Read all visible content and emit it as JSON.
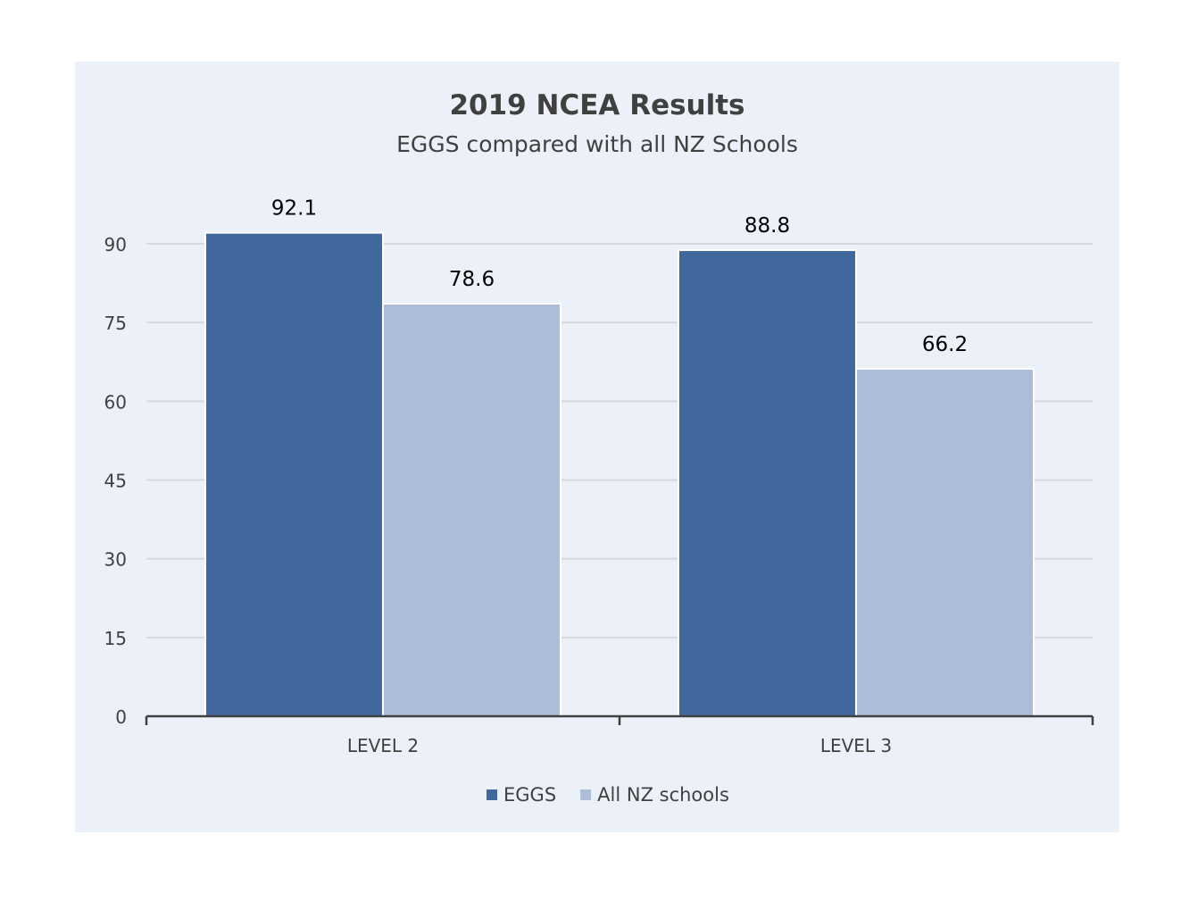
{
  "chart_data": {
    "type": "bar",
    "title": "2019 NCEA Results",
    "subtitle": "EGGS compared with all NZ Schools",
    "categories": [
      "LEVEL 2",
      "LEVEL 3"
    ],
    "series": [
      {
        "name": "EGGS",
        "values": [
          92.1,
          88.8
        ],
        "color": "#41689c"
      },
      {
        "name": "All NZ schools",
        "values": [
          78.6,
          66.2
        ],
        "color": "#acbcd9"
      }
    ],
    "data_labels": [
      "92.1",
      "88.8",
      "78.6",
      "66.2"
    ],
    "y_ticks": [
      0,
      15,
      30,
      45,
      60,
      75,
      90
    ],
    "ylim": [
      0,
      90
    ],
    "grid": true,
    "legend_position": "bottom",
    "colors": {
      "panel_background": "#ecf1f9",
      "gridline": "#d6d9de",
      "axis": "#404040",
      "text": "#404040",
      "label_text": "#000000"
    }
  }
}
